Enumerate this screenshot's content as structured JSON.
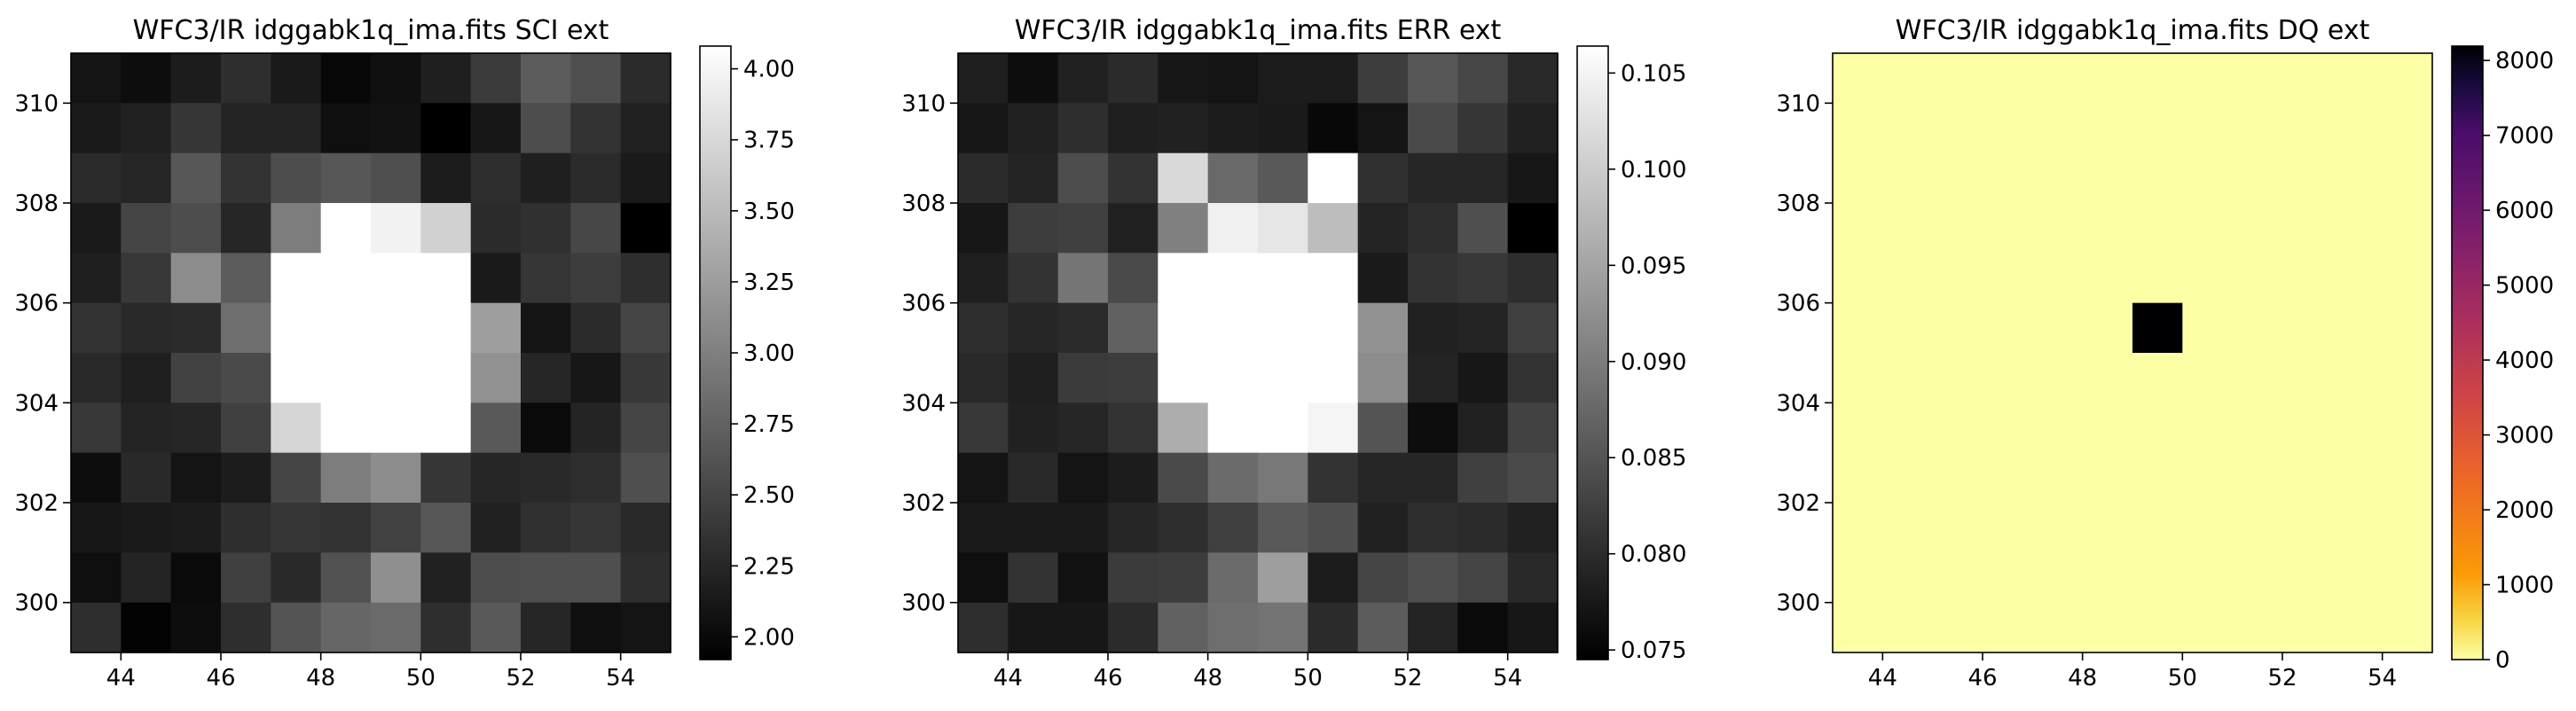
{
  "chart_data": [
    {
      "type": "heatmap",
      "title": "WFC3/IR idggabk1q_ima.fits SCI ext",
      "colormap": "gray",
      "x_range": [
        43,
        55
      ],
      "y_range": [
        299,
        311
      ],
      "x_ticks": [
        "44",
        "46",
        "48",
        "50",
        "52",
        "54"
      ],
      "y_ticks": [
        "300",
        "302",
        "304",
        "306",
        "308",
        "310"
      ],
      "colorbar_range": [
        1.92,
        4.08
      ],
      "colorbar_ticks": [
        "2.00",
        "2.25",
        "2.50",
        "2.75",
        "3.00",
        "3.25",
        "3.50",
        "3.75",
        "4.00"
      ],
      "rows_top_to_bottom": [
        [
          0.08,
          0.05,
          0.11,
          0.18,
          0.1,
          0.03,
          0.06,
          0.12,
          0.23,
          0.36,
          0.31,
          0.17
        ],
        [
          0.1,
          0.13,
          0.21,
          0.14,
          0.14,
          0.06,
          0.07,
          0.0,
          0.09,
          0.3,
          0.2,
          0.13
        ],
        [
          0.17,
          0.15,
          0.34,
          0.2,
          0.3,
          0.34,
          0.31,
          0.11,
          0.18,
          0.12,
          0.17,
          0.1
        ],
        [
          0.1,
          0.27,
          0.3,
          0.15,
          0.49,
          1.0,
          0.95,
          0.82,
          0.17,
          0.19,
          0.28,
          0.0
        ],
        [
          0.12,
          0.22,
          0.55,
          0.36,
          1.0,
          1.0,
          1.0,
          1.0,
          0.1,
          0.21,
          0.24,
          0.18
        ],
        [
          0.2,
          0.16,
          0.17,
          0.43,
          1.0,
          1.0,
          1.0,
          1.0,
          0.62,
          0.08,
          0.17,
          0.27
        ],
        [
          0.16,
          0.12,
          0.26,
          0.29,
          1.0,
          1.0,
          1.0,
          1.0,
          0.57,
          0.15,
          0.09,
          0.22
        ],
        [
          0.22,
          0.14,
          0.15,
          0.25,
          0.84,
          1.0,
          1.0,
          1.0,
          0.35,
          0.04,
          0.14,
          0.27
        ],
        [
          0.05,
          0.16,
          0.08,
          0.11,
          0.27,
          0.49,
          0.55,
          0.21,
          0.15,
          0.16,
          0.18,
          0.31
        ],
        [
          0.09,
          0.1,
          0.11,
          0.18,
          0.21,
          0.2,
          0.26,
          0.34,
          0.13,
          0.19,
          0.21,
          0.16
        ],
        [
          0.06,
          0.14,
          0.04,
          0.25,
          0.16,
          0.32,
          0.56,
          0.13,
          0.3,
          0.31,
          0.31,
          0.18
        ],
        [
          0.18,
          0.01,
          0.05,
          0.18,
          0.33,
          0.4,
          0.42,
          0.18,
          0.35,
          0.15,
          0.06,
          0.08
        ]
      ]
    },
    {
      "type": "heatmap",
      "title": "WFC3/IR idggabk1q_ima.fits ERR ext",
      "colormap": "gray",
      "x_range": [
        43,
        55
      ],
      "y_range": [
        299,
        311
      ],
      "x_ticks": [
        "44",
        "46",
        "48",
        "50",
        "52",
        "54"
      ],
      "y_ticks": [
        "300",
        "302",
        "304",
        "306",
        "308",
        "310"
      ],
      "colorbar_range": [
        0.0745,
        0.1064
      ],
      "colorbar_ticks": [
        "0.075",
        "0.080",
        "0.085",
        "0.090",
        "0.095",
        "0.100",
        "0.105"
      ],
      "rows_top_to_bottom": [
        [
          0.12,
          0.05,
          0.13,
          0.17,
          0.09,
          0.08,
          0.11,
          0.11,
          0.24,
          0.34,
          0.28,
          0.16
        ],
        [
          0.09,
          0.13,
          0.18,
          0.12,
          0.13,
          0.11,
          0.1,
          0.03,
          0.08,
          0.29,
          0.21,
          0.13
        ],
        [
          0.17,
          0.14,
          0.3,
          0.2,
          0.85,
          0.41,
          0.35,
          1.0,
          0.19,
          0.15,
          0.15,
          0.09
        ],
        [
          0.09,
          0.24,
          0.25,
          0.13,
          0.5,
          0.94,
          0.9,
          0.74,
          0.14,
          0.18,
          0.31,
          0.0
        ],
        [
          0.12,
          0.2,
          0.46,
          0.29,
          1.0,
          1.0,
          1.0,
          1.0,
          0.1,
          0.2,
          0.22,
          0.18
        ],
        [
          0.18,
          0.15,
          0.17,
          0.38,
          1.0,
          1.0,
          1.0,
          1.0,
          0.57,
          0.13,
          0.14,
          0.25
        ],
        [
          0.16,
          0.12,
          0.23,
          0.24,
          1.0,
          1.0,
          1.0,
          1.0,
          0.55,
          0.14,
          0.09,
          0.2
        ],
        [
          0.22,
          0.13,
          0.15,
          0.2,
          0.68,
          1.0,
          1.0,
          0.96,
          0.33,
          0.05,
          0.13,
          0.26
        ],
        [
          0.08,
          0.16,
          0.08,
          0.11,
          0.29,
          0.42,
          0.47,
          0.2,
          0.15,
          0.15,
          0.25,
          0.29
        ],
        [
          0.1,
          0.1,
          0.1,
          0.15,
          0.18,
          0.25,
          0.35,
          0.31,
          0.13,
          0.18,
          0.17,
          0.13
        ],
        [
          0.06,
          0.2,
          0.07,
          0.23,
          0.24,
          0.42,
          0.62,
          0.11,
          0.27,
          0.31,
          0.27,
          0.16
        ],
        [
          0.18,
          0.09,
          0.09,
          0.17,
          0.38,
          0.43,
          0.45,
          0.17,
          0.36,
          0.14,
          0.04,
          0.09
        ]
      ]
    },
    {
      "type": "heatmap",
      "title": "WFC3/IR idggabk1q_ima.fits DQ ext",
      "colormap": "inferno_r",
      "x_range": [
        43,
        55
      ],
      "y_range": [
        299,
        311
      ],
      "x_ticks": [
        "44",
        "46",
        "48",
        "50",
        "52",
        "54"
      ],
      "y_ticks": [
        "300",
        "302",
        "304",
        "306",
        "308",
        "310"
      ],
      "colorbar_range": [
        0,
        8192
      ],
      "colorbar_ticks": [
        "0",
        "1000",
        "2000",
        "3000",
        "4000",
        "5000",
        "6000",
        "7000",
        "8000"
      ],
      "flagged_pixels": [
        {
          "x": 49.5,
          "y": 305.5,
          "value": 8192
        }
      ],
      "background_value": 0
    }
  ]
}
